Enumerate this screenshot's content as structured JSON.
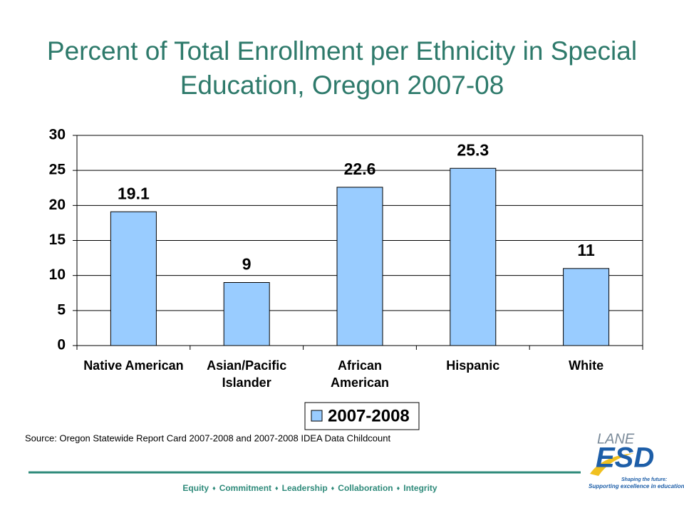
{
  "chart_data": {
    "type": "bar",
    "title": "Percent of Total Enrollment per Ethnicity in Special Education, Oregon 2007-08",
    "categories": [
      [
        "Native American"
      ],
      [
        "Asian/Pacific",
        "Islander"
      ],
      [
        "African",
        "American"
      ],
      [
        "Hispanic"
      ],
      [
        "White"
      ]
    ],
    "series": [
      {
        "name": "2007-2008",
        "color": "#99ccff",
        "values": [
          19.1,
          9,
          22.6,
          25.3,
          11
        ]
      }
    ],
    "ylim": [
      0,
      30
    ],
    "yticks": [
      0,
      5,
      10,
      15,
      20,
      25,
      30
    ],
    "grid": true,
    "legend": "bottom",
    "source": "Source: Oregon Statewide Report Card 2007-2008 and 2007-2008 IDEA Data Childcount"
  },
  "footer": {
    "values": [
      "Equity",
      "Commitment",
      "Leadership",
      "Collaboration",
      "Integrity"
    ]
  },
  "logo": {
    "top": "LANE",
    "main": "ESD",
    "tagline": [
      "Shaping the future:",
      "Supporting excellence in education"
    ]
  }
}
